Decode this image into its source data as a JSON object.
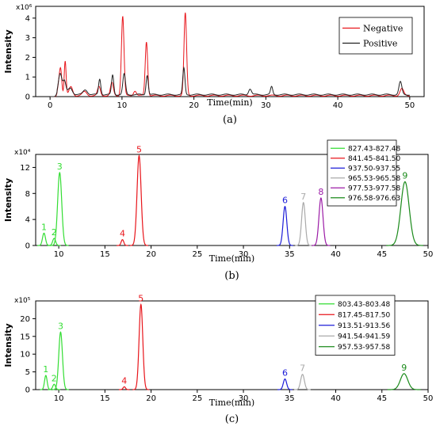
{
  "chart_data": [
    {
      "type": "line",
      "id": "a",
      "panel_label": "(a)",
      "xlabel": "Time(min)",
      "ylabel": "Intensity",
      "exponent": "x10⁶",
      "xlim": [
        -2,
        52
      ],
      "ylim": [
        0,
        4.6
      ],
      "xticks": [
        0,
        10,
        20,
        30,
        40,
        50
      ],
      "yticks": [
        0,
        1,
        2,
        3,
        4
      ],
      "legend_position": "top-right",
      "series": [
        {
          "name": "Negative",
          "color": "#e8151b",
          "baseline": 0.05,
          "peaks": [
            {
              "t": 1.3,
              "h": 0.8,
              "w": 0.2
            },
            {
              "t": 1.5,
              "h": 0.9,
              "w": 0.15
            },
            {
              "t": 2.1,
              "h": 1.75,
              "w": 0.13
            },
            {
              "t": 2.9,
              "h": 0.45,
              "w": 0.25
            },
            {
              "t": 4.8,
              "h": 0.2,
              "w": 0.3
            },
            {
              "t": 6.8,
              "h": 0.45,
              "w": 0.2
            },
            {
              "t": 8.6,
              "h": 0.65,
              "w": 0.2
            },
            {
              "t": 10.1,
              "h": 4.05,
              "w": 0.18
            },
            {
              "t": 11.8,
              "h": 0.25,
              "w": 0.2
            },
            {
              "t": 13.4,
              "h": 2.75,
              "w": 0.17
            },
            {
              "t": 18.8,
              "h": 4.2,
              "w": 0.18
            },
            {
              "t": 48.9,
              "h": 0.35,
              "w": 0.25
            }
          ]
        },
        {
          "name": "Positive",
          "color": "#222222",
          "baseline": 0.1,
          "peaks": [
            {
              "t": 1.4,
              "h": 1.1,
              "w": 0.25
            },
            {
              "t": 2.0,
              "h": 0.65,
              "w": 0.2
            },
            {
              "t": 2.8,
              "h": 0.35,
              "w": 0.3
            },
            {
              "t": 4.9,
              "h": 0.25,
              "w": 0.3
            },
            {
              "t": 6.9,
              "h": 0.8,
              "w": 0.15
            },
            {
              "t": 8.7,
              "h": 1.0,
              "w": 0.15
            },
            {
              "t": 10.3,
              "h": 1.05,
              "w": 0.18
            },
            {
              "t": 13.5,
              "h": 1.0,
              "w": 0.15
            },
            {
              "t": 18.6,
              "h": 1.35,
              "w": 0.15
            },
            {
              "t": 27.8,
              "h": 0.3,
              "w": 0.2
            },
            {
              "t": 30.8,
              "h": 0.4,
              "w": 0.15
            },
            {
              "t": 48.7,
              "h": 0.65,
              "w": 0.2
            }
          ]
        }
      ]
    },
    {
      "type": "line",
      "id": "b",
      "panel_label": "(b)",
      "xlabel": "Time(min)",
      "ylabel": "Intensity",
      "exponent": "x10⁴",
      "xlim": [
        7.5,
        50
      ],
      "ylim": [
        0,
        14
      ],
      "xticks": [
        10,
        15,
        20,
        25,
        30,
        35,
        40,
        45,
        50
      ],
      "yticks": [
        0,
        4,
        8,
        12
      ],
      "legend_position": "top-right",
      "series": [
        {
          "name": "827.43-827.48",
          "color": "#33dd33",
          "peaks": [
            {
              "t": 8.4,
              "h": 1.9,
              "w": 0.16,
              "label": "1"
            },
            {
              "t": 9.5,
              "h": 1.1,
              "w": 0.16,
              "label": "2"
            },
            {
              "t": 10.1,
              "h": 11.2,
              "w": 0.22,
              "label": "3"
            }
          ]
        },
        {
          "name": "841.45-841.50",
          "color": "#e8151b",
          "peaks": [
            {
              "t": 16.9,
              "h": 0.9,
              "w": 0.14,
              "label": "4"
            },
            {
              "t": 18.7,
              "h": 13.8,
              "w": 0.22,
              "label": "5"
            }
          ]
        },
        {
          "name": "937.50-937.55",
          "color": "#1c1cd8",
          "peaks": [
            {
              "t": 34.5,
              "h": 6.0,
              "w": 0.2,
              "label": "6"
            }
          ]
        },
        {
          "name": "965.53-965.58",
          "color": "#aaaaaa",
          "peaks": [
            {
              "t": 36.5,
              "h": 6.6,
              "w": 0.2,
              "label": "7"
            }
          ]
        },
        {
          "name": "977.53-977.58",
          "color": "#9b1ba6",
          "peaks": [
            {
              "t": 38.4,
              "h": 7.3,
              "w": 0.22,
              "label": "8"
            }
          ]
        },
        {
          "name": "976.58-976.63",
          "color": "#1a8a1a",
          "peaks": [
            {
              "t": 47.5,
              "h": 9.8,
              "w": 0.45,
              "label": "9"
            }
          ]
        }
      ]
    },
    {
      "type": "line",
      "id": "c",
      "panel_label": "(c)",
      "xlabel": "Time(min)",
      "ylabel": "Intensity",
      "exponent": "x10⁵",
      "xlim": [
        7.5,
        50
      ],
      "ylim": [
        0,
        25
      ],
      "xticks": [
        10,
        15,
        20,
        25,
        30,
        35,
        40,
        45,
        50
      ],
      "yticks": [
        0,
        5,
        10,
        15,
        20
      ],
      "legend_position": "top-right",
      "series": [
        {
          "name": "803.43-803.48",
          "color": "#33dd33",
          "peaks": [
            {
              "t": 8.6,
              "h": 4.0,
              "w": 0.14,
              "label": "1"
            },
            {
              "t": 9.5,
              "h": 1.5,
              "w": 0.15,
              "label": "2"
            },
            {
              "t": 10.2,
              "h": 16.2,
              "w": 0.2,
              "label": "3"
            }
          ]
        },
        {
          "name": "817.45-817.50",
          "color": "#e8151b",
          "peaks": [
            {
              "t": 17.1,
              "h": 0.8,
              "w": 0.13,
              "label": "4"
            },
            {
              "t": 18.9,
              "h": 24.0,
              "w": 0.2,
              "label": "5"
            }
          ]
        },
        {
          "name": "913.51-913.56",
          "color": "#1c1cd8",
          "peaks": [
            {
              "t": 34.5,
              "h": 3.0,
              "w": 0.18,
              "label": "6"
            }
          ]
        },
        {
          "name": "941.54-941.59",
          "color": "#aaaaaa",
          "peaks": [
            {
              "t": 36.4,
              "h": 4.3,
              "w": 0.2,
              "label": "7"
            }
          ]
        },
        {
          "name": "957.53-957.58",
          "color": "#1a8a1a",
          "peaks": [
            {
              "t": 47.4,
              "h": 4.5,
              "w": 0.4,
              "label": "9"
            }
          ]
        }
      ]
    }
  ]
}
